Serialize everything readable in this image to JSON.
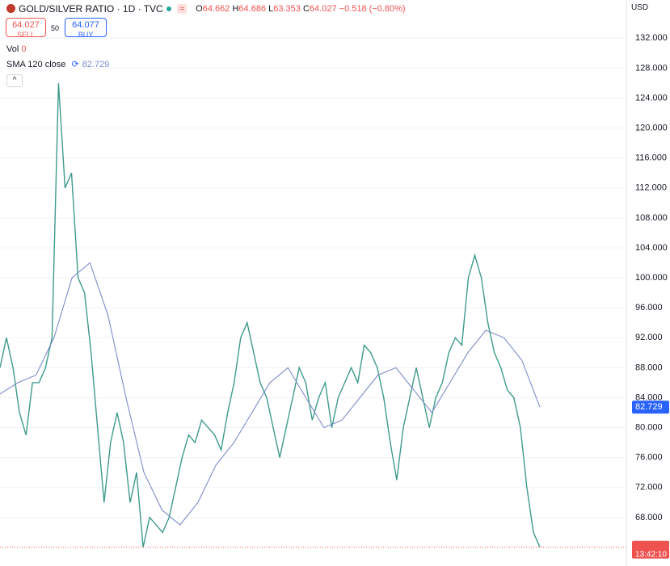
{
  "header": {
    "symbol": "GOLD/SILVER RATIO · 1D · TVC",
    "o_label": "O",
    "o": "64.662",
    "h_label": "H",
    "h": "64.686",
    "l_label": "L",
    "l": "63.353",
    "c_label": "C",
    "c": "64.027",
    "change": "−0.518 (−0.80%)",
    "sell_price": "64.027",
    "sell": "SELL",
    "spread": "50",
    "buy_price": "64.077",
    "buy": "BUY",
    "vol_label": "Vol",
    "vol": "0",
    "currency": "USD",
    "countdown": "13:42:10"
  },
  "chart_data": {
    "type": "line",
    "ylim": [
      62.7,
      137.1
    ],
    "yticks": [
      {
        "value": 68,
        "label": "68.000"
      },
      {
        "value": 72,
        "label": "72.000"
      },
      {
        "value": 76,
        "label": "76.000"
      },
      {
        "value": 80,
        "label": "80.000"
      },
      {
        "value": 84,
        "label": "84.000"
      },
      {
        "value": 88,
        "label": "88.000"
      },
      {
        "value": 92,
        "label": "92.000"
      },
      {
        "value": 96,
        "label": "96.000"
      },
      {
        "value": 100,
        "label": "100.000"
      },
      {
        "value": 104,
        "label": "104.000"
      },
      {
        "value": 108,
        "label": "108.000"
      },
      {
        "value": 112,
        "label": "112.000"
      },
      {
        "value": 116,
        "label": "116.000"
      },
      {
        "value": 120,
        "label": "120.000"
      },
      {
        "value": 124,
        "label": "124.000"
      },
      {
        "value": 128,
        "label": "128.000"
      },
      {
        "value": 132,
        "label": "132.000"
      }
    ],
    "grid": true,
    "series": [
      {
        "name": "GOLD/SILVER RATIO",
        "color": "#3f9a8c",
        "values": [
          88,
          92,
          88,
          82,
          79,
          86,
          86,
          88,
          92,
          126,
          112,
          114,
          100,
          98,
          90,
          80,
          70,
          78,
          82,
          78,
          70,
          74,
          64,
          68,
          67,
          66,
          68,
          72,
          76,
          79,
          78,
          81,
          80,
          79,
          77,
          82,
          86,
          92,
          94,
          90,
          86,
          84,
          80,
          76,
          80,
          84,
          88,
          86,
          81,
          84,
          86,
          80,
          84,
          86,
          88,
          86,
          91,
          90,
          88,
          84,
          78,
          73,
          80,
          84,
          88,
          84,
          80,
          84,
          86,
          90,
          92,
          91,
          100,
          103,
          100,
          94,
          90,
          88,
          85,
          84,
          80,
          72,
          66,
          64.027
        ]
      },
      {
        "name": "SMA 120 close",
        "color": "#7e8bc9",
        "value_label": "82.729",
        "values": [
          84.5,
          86,
          87,
          92,
          100,
          102,
          95,
          84,
          74,
          69,
          67,
          70,
          75,
          78,
          82,
          86,
          88,
          84,
          80,
          81,
          84,
          87,
          88,
          85,
          82,
          86,
          90,
          93,
          92,
          89,
          82.729
        ]
      }
    ],
    "last_price": 64.027
  }
}
